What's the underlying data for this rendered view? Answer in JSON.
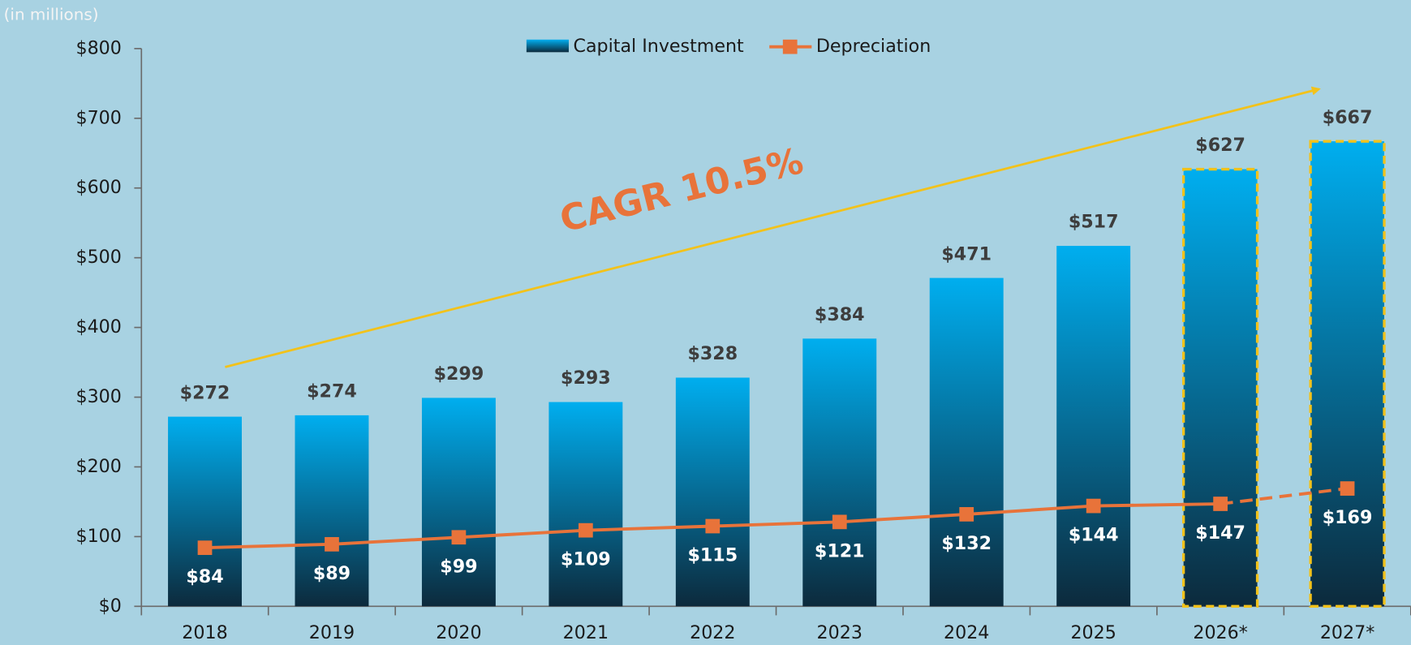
{
  "chart_data": {
    "type": "bar",
    "unit_note": "(in millions)",
    "annotation": "CAGR 10.5%",
    "categories": [
      "2018",
      "2019",
      "2020",
      "2021",
      "2022",
      "2023",
      "2024",
      "2025",
      "2026*",
      "2027*"
    ],
    "series": [
      {
        "name": "Capital Investment",
        "type": "bar",
        "color": "#00aeef",
        "color_bottom": "#0c2a3c",
        "values": [
          272,
          274,
          299,
          293,
          328,
          384,
          471,
          517,
          627,
          667
        ],
        "value_labels": [
          "$272",
          "$274",
          "$299",
          "$293",
          "$328",
          "$384",
          "$471",
          "$517",
          "$627",
          "$667"
        ]
      },
      {
        "name": "Depreciation",
        "type": "line",
        "color": "#e8733a",
        "values": [
          84,
          89,
          99,
          109,
          115,
          121,
          132,
          144,
          147,
          169
        ],
        "value_labels": [
          "$84",
          "$89",
          "$99",
          "$109",
          "$115",
          "$121",
          "$132",
          "$144",
          "$147",
          "$169"
        ]
      }
    ],
    "projected": [
      false,
      false,
      false,
      false,
      false,
      false,
      false,
      false,
      true,
      true
    ],
    "projected_outline_color": "#f2c21b",
    "trend_arrow_color": "#f2c21b",
    "ylim": [
      0,
      800
    ],
    "yticks": [
      {
        "value": 0,
        "label": "$0"
      },
      {
        "value": 100,
        "label": "$100"
      },
      {
        "value": 200,
        "label": "$200"
      },
      {
        "value": 300,
        "label": "$300"
      },
      {
        "value": 400,
        "label": "$400"
      },
      {
        "value": 500,
        "label": "$500"
      },
      {
        "value": 600,
        "label": "$600"
      },
      {
        "value": 700,
        "label": "$700"
      },
      {
        "value": 800,
        "label": "$800"
      }
    ],
    "legend": "top-center"
  }
}
